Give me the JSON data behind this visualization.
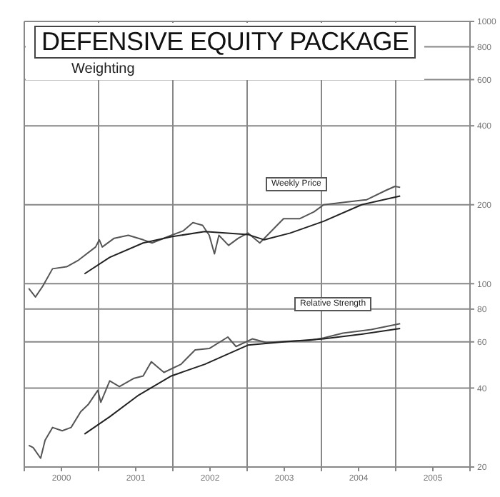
{
  "chart_data": {
    "type": "line",
    "title": "DEFENSIVE EQUITY PACKAGE",
    "subtitle": "Weighting",
    "annotations": [
      "Weekly Price",
      "Relative Strength"
    ],
    "log": "y",
    "grid": true,
    "legend": false,
    "marker": "none",
    "line_style": "solid",
    "xlim": [
      2000,
      2006
    ],
    "xticks": [
      {
        "value": 2000,
        "label": null
      },
      {
        "value": 2000.5,
        "label": "2000"
      },
      {
        "value": 2001,
        "label": null
      },
      {
        "value": 2001.5,
        "label": "2001"
      },
      {
        "value": 2002,
        "label": null
      },
      {
        "value": 2002.5,
        "label": "2002"
      },
      {
        "value": 2003,
        "label": null
      },
      {
        "value": 2003.5,
        "label": "2003"
      },
      {
        "value": 2004,
        "label": null
      },
      {
        "value": 2004.5,
        "label": "2004"
      },
      {
        "value": 2005,
        "label": null
      },
      {
        "value": 2005.5,
        "label": "2005"
      },
      {
        "value": 2006,
        "label": null
      }
    ],
    "ylim": [
      20,
      1000
    ],
    "yticks": [
      20,
      40,
      60,
      80,
      100,
      200,
      400,
      600,
      800,
      1000
    ],
    "series": [
      {
        "color": "#555555",
        "x": [
          2000.06,
          2000.15,
          2000.25,
          2000.38,
          2000.57,
          2000.73,
          2000.96,
          2001.01,
          2001.05,
          2001.21,
          2001.4,
          2001.6,
          2001.72,
          2001.98,
          2002.14,
          2002.27,
          2002.4,
          2002.49,
          2002.56,
          2002.62,
          2002.75,
          2002.88,
          2003.01,
          2003.17,
          2003.33,
          2003.49,
          2003.71,
          2003.9,
          2004.03,
          2004.29,
          2004.61,
          2004.87,
          2004.99,
          2005.06
        ],
        "values": [
          96,
          89,
          98,
          114,
          116,
          123,
          138,
          147,
          138,
          149,
          153,
          147,
          143,
          153,
          159,
          171,
          167,
          153,
          130,
          153,
          140,
          149,
          156,
          143,
          159,
          177,
          177,
          188,
          200,
          204,
          209,
          227,
          235,
          233
        ]
      },
      {
        "color": "#222222",
        "x": [
          2000.81,
          2001.15,
          2001.6,
          2001.98,
          2002.43,
          2003.01,
          2003.23,
          2003.58,
          2004.03,
          2004.54,
          2005.06
        ],
        "values": [
          109,
          126,
          143,
          151,
          158,
          154,
          147,
          156,
          173,
          200,
          216
        ]
      },
      {
        "color": "#555555",
        "x": [
          2000.06,
          2000.12,
          2000.22,
          2000.28,
          2000.38,
          2000.51,
          2000.63,
          2000.76,
          2000.86,
          2000.99,
          2001.03,
          2001.15,
          2001.28,
          2001.47,
          2001.6,
          2001.71,
          2001.88,
          2002.11,
          2002.3,
          2002.49,
          2002.74,
          2002.85,
          2003.07,
          2003.26,
          2003.52,
          2003.84,
          2004.03,
          2004.29,
          2004.67,
          2005.06
        ],
        "values": [
          24.2,
          23.7,
          21.6,
          25.3,
          28.3,
          27.5,
          28.3,
          32.5,
          34.6,
          39.2,
          35.3,
          42.6,
          40.5,
          43.5,
          44.5,
          50.4,
          45.9,
          49.3,
          55.9,
          56.6,
          62.6,
          57.6,
          61.6,
          59.6,
          60.3,
          60.8,
          62.1,
          64.8,
          66.9,
          70.4
        ]
      },
      {
        "color": "#222222",
        "x": [
          2000.81,
          2001.15,
          2001.54,
          2001.98,
          2002.43,
          2003.01,
          2003.52,
          2004.03,
          2004.54,
          2005.06
        ],
        "values": [
          26.7,
          31.1,
          37.6,
          44.5,
          49.3,
          58.3,
          60.1,
          61.6,
          64.2,
          67.5
        ]
      }
    ]
  }
}
